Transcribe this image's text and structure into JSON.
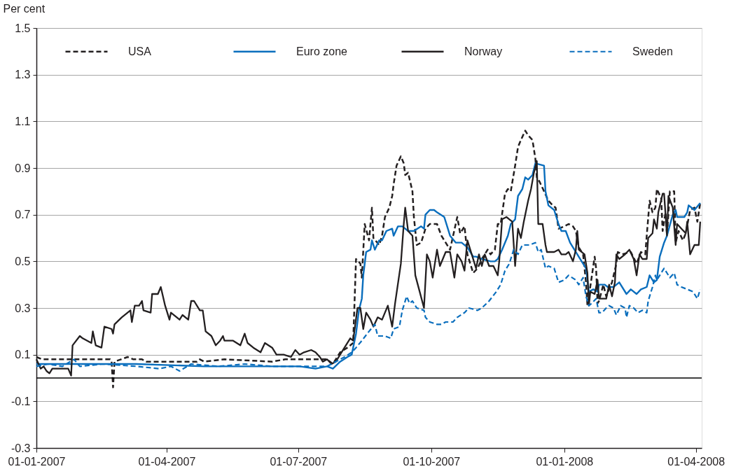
{
  "chart_data": {
    "type": "line",
    "ylabel": "Per cent",
    "xlim": [
      "2007-01-01",
      "2008-04-05"
    ],
    "xticks": [
      {
        "value": "2007-01-01",
        "label": "01-01-2007"
      },
      {
        "value": "2007-04-01",
        "label": "01-04-2007"
      },
      {
        "value": "2007-07-01",
        "label": "01-07-2007"
      },
      {
        "value": "2007-10-01",
        "label": "01-10-2007"
      },
      {
        "value": "2008-01-01",
        "label": "01-01-2008"
      },
      {
        "value": "2008-04-01",
        "label": "01-04-2008"
      }
    ],
    "ylim": [
      -0.3,
      1.5
    ],
    "yticks": [
      -0.3,
      -0.1,
      0.1,
      0.3,
      0.5,
      0.7,
      0.9,
      1.1,
      1.3,
      1.5
    ],
    "grid": "y",
    "legend": "top",
    "marker": "none",
    "ref_lines": [
      {
        "axis": "y",
        "value": 0,
        "color": "#000000"
      }
    ],
    "series": [
      {
        "name": "USA",
        "color": "#231f20",
        "line_style": "dashed",
        "x": [
          "2007-01-01",
          "2007-01-05",
          "2007-02-21",
          "2007-02-22",
          "2007-02-23",
          "2007-02-24",
          "2007-03-05",
          "2007-03-09",
          "2007-03-15",
          "2007-03-18",
          "2007-04-22",
          "2007-04-24",
          "2007-04-27",
          "2007-05-11",
          "2007-06-13",
          "2007-06-22",
          "2007-07-21",
          "2007-07-25",
          "2007-07-30",
          "2007-08-04",
          "2007-08-08",
          "2007-08-10",
          "2007-08-13",
          "2007-08-14",
          "2007-08-16",
          "2007-08-19",
          "2007-08-21",
          "2007-08-22",
          "2007-08-26",
          "2007-08-28",
          "2007-08-30",
          "2007-09-02",
          "2007-09-04",
          "2007-09-05",
          "2007-09-07",
          "2007-09-10",
          "2007-09-12",
          "2007-09-13",
          "2007-09-15",
          "2007-09-18",
          "2007-09-19",
          "2007-09-21",
          "2007-09-24",
          "2007-09-27",
          "2007-09-30",
          "2007-10-05",
          "2007-10-08",
          "2007-10-11",
          "2007-10-14",
          "2007-10-19",
          "2007-10-21",
          "2007-10-24",
          "2007-10-26",
          "2007-10-28",
          "2007-10-30",
          "2007-11-02",
          "2007-11-05",
          "2007-11-09",
          "2007-11-11",
          "2007-11-14",
          "2007-11-16",
          "2007-11-18",
          "2007-11-21",
          "2007-11-23",
          "2007-11-25",
          "2007-11-28",
          "2007-11-30",
          "2007-12-02",
          "2007-12-05",
          "2007-12-07",
          "2007-12-10",
          "2007-12-12",
          "2007-12-13",
          "2007-12-15",
          "2007-12-18",
          "2007-12-21",
          "2007-12-24",
          "2007-12-26",
          "2007-12-28",
          "2008-01-01",
          "2008-01-04",
          "2008-01-07",
          "2008-01-09",
          "2008-01-11",
          "2008-01-14",
          "2008-01-16",
          "2008-01-17",
          "2008-01-18",
          "2008-01-22",
          "2008-01-23",
          "2008-01-24",
          "2008-01-25",
          "2008-01-28",
          "2008-01-30",
          "2008-02-03",
          "2008-02-06",
          "2008-02-07",
          "2008-02-10",
          "2008-02-16",
          "2008-02-20",
          "2008-02-23",
          "2008-02-26",
          "2008-02-27",
          "2008-02-29",
          "2008-03-02",
          "2008-03-04",
          "2008-03-05",
          "2008-03-08",
          "2008-03-09",
          "2008-03-11",
          "2008-03-12",
          "2008-03-14",
          "2008-03-17",
          "2008-03-18",
          "2008-03-20",
          "2008-03-23",
          "2008-03-25",
          "2008-03-28",
          "2008-03-31",
          "2008-04-02",
          "2008-04-04"
        ],
        "values": [
          0.09,
          0.08,
          0.08,
          0.07,
          -0.04,
          0.07,
          0.09,
          0.08,
          0.08,
          0.07,
          0.07,
          0.08,
          0.07,
          0.08,
          0.07,
          0.08,
          0.08,
          0.06,
          0.11,
          0.13,
          0.15,
          0.51,
          0.49,
          0.43,
          0.66,
          0.59,
          0.73,
          0.6,
          0.57,
          0.61,
          0.69,
          0.73,
          0.78,
          0.83,
          0.91,
          0.95,
          0.92,
          0.87,
          0.88,
          0.8,
          0.69,
          0.57,
          0.58,
          0.64,
          0.66,
          0.66,
          0.61,
          0.58,
          0.55,
          0.69,
          0.62,
          0.65,
          0.53,
          0.49,
          0.45,
          0.47,
          0.51,
          0.55,
          0.53,
          0.55,
          0.66,
          0.66,
          0.79,
          0.81,
          0.8,
          0.91,
          0.99,
          1.02,
          1.06,
          1.04,
          1.02,
          0.94,
          0.86,
          0.84,
          0.8,
          0.76,
          0.74,
          0.73,
          0.64,
          0.65,
          0.66,
          0.65,
          0.63,
          0.56,
          0.53,
          0.41,
          0.31,
          0.35,
          0.52,
          0.47,
          0.32,
          0.33,
          0.4,
          0.35,
          0.41,
          0.49,
          0.54,
          0.53,
          0.54,
          0.49,
          0.54,
          0.53,
          0.61,
          0.76,
          0.71,
          0.73,
          0.81,
          0.77,
          0.63,
          0.71,
          0.61,
          0.8,
          0.8,
          0.58,
          0.63,
          0.59,
          0.62,
          0.72,
          0.73,
          0.67,
          0.75
        ]
      },
      {
        "name": "Euro zone",
        "color": "#0a6ebd",
        "line_style": "solid",
        "x": [
          "2007-01-01",
          "2007-02-02",
          "2007-03-11",
          "2007-04-27",
          "2007-06-13",
          "2007-07-02",
          "2007-07-13",
          "2007-07-21",
          "2007-07-25",
          "2007-07-30",
          "2007-08-04",
          "2007-08-07",
          "2007-08-10",
          "2007-08-12",
          "2007-08-14",
          "2007-08-15",
          "2007-08-17",
          "2007-08-20",
          "2007-08-21",
          "2007-08-23",
          "2007-08-26",
          "2007-08-28",
          "2007-08-31",
          "2007-09-04",
          "2007-09-05",
          "2007-09-08",
          "2007-09-11",
          "2007-09-15",
          "2007-09-19",
          "2007-09-24",
          "2007-09-26",
          "2007-09-27",
          "2007-09-30",
          "2007-10-03",
          "2007-10-05",
          "2007-10-10",
          "2007-10-11",
          "2007-10-14",
          "2007-10-18",
          "2007-10-22",
          "2007-10-26",
          "2007-10-30",
          "2007-11-01",
          "2007-11-05",
          "2007-11-11",
          "2007-11-14",
          "2007-11-16",
          "2007-11-19",
          "2007-11-23",
          "2007-11-25",
          "2007-11-28",
          "2007-11-30",
          "2007-12-03",
          "2007-12-05",
          "2007-12-07",
          "2007-12-10",
          "2007-12-12",
          "2007-12-18",
          "2007-12-19",
          "2007-12-21",
          "2007-12-25",
          "2007-12-28",
          "2007-12-30",
          "2008-01-02",
          "2008-01-05",
          "2008-01-10",
          "2008-01-13",
          "2008-01-16",
          "2008-01-18",
          "2008-01-21",
          "2008-01-24",
          "2008-01-25",
          "2008-01-29",
          "2008-01-31",
          "2008-02-04",
          "2008-02-08",
          "2008-02-13",
          "2008-02-16",
          "2008-02-20",
          "2008-02-23",
          "2008-02-27",
          "2008-02-29",
          "2008-03-03",
          "2008-03-05",
          "2008-03-07",
          "2008-03-10",
          "2008-03-12",
          "2008-03-16",
          "2008-03-18",
          "2008-03-19",
          "2008-03-24",
          "2008-03-26",
          "2008-03-27",
          "2008-03-31",
          "2008-04-04"
        ],
        "values": [
          0.06,
          0.06,
          0.06,
          0.05,
          0.05,
          0.05,
          0.04,
          0.05,
          0.04,
          0.07,
          0.09,
          0.1,
          0.19,
          0.29,
          0.34,
          0.44,
          0.54,
          0.55,
          0.59,
          0.55,
          0.59,
          0.59,
          0.63,
          0.64,
          0.61,
          0.65,
          0.65,
          0.63,
          0.63,
          0.65,
          0.64,
          0.7,
          0.72,
          0.72,
          0.71,
          0.69,
          0.67,
          0.61,
          0.58,
          0.58,
          0.56,
          0.52,
          0.52,
          0.51,
          0.5,
          0.5,
          0.51,
          0.55,
          0.61,
          0.66,
          0.68,
          0.78,
          0.81,
          0.86,
          0.85,
          0.87,
          0.92,
          0.91,
          0.8,
          0.74,
          0.72,
          0.66,
          0.63,
          0.63,
          0.58,
          0.53,
          0.5,
          0.47,
          0.37,
          0.38,
          0.37,
          0.4,
          0.4,
          0.39,
          0.39,
          0.41,
          0.36,
          0.38,
          0.36,
          0.38,
          0.39,
          0.44,
          0.41,
          0.42,
          0.52,
          0.58,
          0.61,
          0.7,
          0.72,
          0.69,
          0.69,
          0.71,
          0.74,
          0.72,
          0.75
        ]
      },
      {
        "name": "Norway",
        "color": "#231f20",
        "line_style": "solid",
        "x": [
          "2007-01-01",
          "2007-01-04",
          "2007-01-06",
          "2007-01-08",
          "2007-01-10",
          "2007-01-12",
          "2007-01-19",
          "2007-01-23",
          "2007-01-25",
          "2007-01-26",
          "2007-01-31",
          "2007-02-02",
          "2007-02-08",
          "2007-02-09",
          "2007-02-11",
          "2007-02-15",
          "2007-02-17",
          "2007-02-22",
          "2007-02-23",
          "2007-02-24",
          "2007-03-01",
          "2007-03-07",
          "2007-03-08",
          "2007-03-10",
          "2007-03-13",
          "2007-03-15",
          "2007-03-16",
          "2007-03-21",
          "2007-03-22",
          "2007-03-26",
          "2007-03-28",
          "2007-03-31",
          "2007-04-03",
          "2007-04-04",
          "2007-04-10",
          "2007-04-12",
          "2007-04-16",
          "2007-04-18",
          "2007-04-20",
          "2007-04-24",
          "2007-04-26",
          "2007-04-28",
          "2007-05-02",
          "2007-05-05",
          "2007-05-08",
          "2007-05-10",
          "2007-05-11",
          "2007-05-17",
          "2007-05-22",
          "2007-05-25",
          "2007-05-27",
          "2007-05-31",
          "2007-06-05",
          "2007-06-08",
          "2007-06-13",
          "2007-06-16",
          "2007-06-21",
          "2007-06-26",
          "2007-06-29",
          "2007-07-02",
          "2007-07-05",
          "2007-07-10",
          "2007-07-13",
          "2007-07-16",
          "2007-07-18",
          "2007-07-21",
          "2007-07-24",
          "2007-07-27",
          "2007-07-30",
          "2007-08-02",
          "2007-08-06",
          "2007-08-08",
          "2007-08-11",
          "2007-08-13",
          "2007-08-15",
          "2007-08-17",
          "2007-08-20",
          "2007-08-22",
          "2007-08-25",
          "2007-08-28",
          "2007-09-01",
          "2007-09-04",
          "2007-09-06",
          "2007-09-10",
          "2007-09-12",
          "2007-09-13",
          "2007-09-15",
          "2007-09-18",
          "2007-09-20",
          "2007-09-23",
          "2007-09-26",
          "2007-09-28",
          "2007-09-30",
          "2007-10-02",
          "2007-10-05",
          "2007-10-07",
          "2007-10-11",
          "2007-10-14",
          "2007-10-17",
          "2007-10-19",
          "2007-10-22",
          "2007-10-24",
          "2007-10-26",
          "2007-10-29",
          "2007-11-01",
          "2007-11-03",
          "2007-11-05",
          "2007-11-07",
          "2007-11-10",
          "2007-11-13",
          "2007-11-16",
          "2007-11-17",
          "2007-11-19",
          "2007-11-22",
          "2007-11-24",
          "2007-11-26",
          "2007-11-28",
          "2007-11-30",
          "2007-12-02",
          "2007-12-04",
          "2007-12-07",
          "2007-12-09",
          "2007-12-11",
          "2007-12-13",
          "2007-12-14",
          "2007-12-17",
          "2007-12-19",
          "2007-12-20",
          "2007-12-25",
          "2007-12-28",
          "2007-12-30",
          "2008-01-02",
          "2008-01-04",
          "2008-01-07",
          "2008-01-09",
          "2008-01-10",
          "2008-01-11",
          "2008-01-15",
          "2008-01-17",
          "2008-01-18",
          "2008-01-19",
          "2008-01-22",
          "2008-01-24",
          "2008-01-25",
          "2008-01-30",
          "2008-02-01",
          "2008-02-03",
          "2008-02-05",
          "2008-02-06",
          "2008-02-08",
          "2008-02-12",
          "2008-02-15",
          "2008-02-18",
          "2008-02-20",
          "2008-02-22",
          "2008-02-24",
          "2008-02-27",
          "2008-02-28",
          "2008-03-02",
          "2008-03-03",
          "2008-03-05",
          "2008-03-06",
          "2008-03-09",
          "2008-03-10",
          "2008-03-12",
          "2008-03-13",
          "2008-03-16",
          "2008-03-18",
          "2008-03-19",
          "2008-03-22",
          "2008-03-25",
          "2008-03-26",
          "2008-03-28",
          "2008-03-31",
          "2008-04-03",
          "2008-04-04"
        ],
        "values": [
          0.08,
          0.04,
          0.05,
          0.03,
          0.02,
          0.04,
          0.04,
          0.04,
          0.01,
          0.14,
          0.18,
          0.17,
          0.15,
          0.2,
          0.14,
          0.13,
          0.22,
          0.21,
          0.19,
          0.23,
          0.26,
          0.29,
          0.24,
          0.31,
          0.31,
          0.33,
          0.29,
          0.28,
          0.36,
          0.36,
          0.39,
          0.31,
          0.25,
          0.28,
          0.25,
          0.27,
          0.25,
          0.33,
          0.33,
          0.29,
          0.29,
          0.2,
          0.18,
          0.14,
          0.16,
          0.18,
          0.16,
          0.16,
          0.14,
          0.19,
          0.15,
          0.13,
          0.11,
          0.15,
          0.13,
          0.1,
          0.1,
          0.09,
          0.12,
          0.1,
          0.11,
          0.12,
          0.11,
          0.09,
          0.07,
          0.08,
          0.06,
          0.07,
          0.1,
          0.13,
          0.17,
          0.16,
          0.3,
          0.3,
          0.21,
          0.28,
          0.25,
          0.22,
          0.26,
          0.25,
          0.31,
          0.22,
          0.32,
          0.49,
          0.66,
          0.73,
          0.63,
          0.61,
          0.44,
          0.37,
          0.3,
          0.53,
          0.5,
          0.43,
          0.55,
          0.48,
          0.54,
          0.54,
          0.43,
          0.53,
          0.5,
          0.46,
          0.59,
          0.53,
          0.47,
          0.53,
          0.48,
          0.53,
          0.48,
          0.48,
          0.44,
          0.5,
          0.68,
          0.69,
          0.68,
          0.67,
          0.48,
          0.64,
          0.6,
          0.67,
          0.76,
          0.81,
          0.88,
          0.93,
          0.66,
          0.66,
          0.57,
          0.54,
          0.54,
          0.55,
          0.53,
          0.53,
          0.54,
          0.5,
          0.55,
          0.63,
          0.55,
          0.53,
          0.45,
          0.31,
          0.37,
          0.36,
          0.42,
          0.34,
          0.34,
          0.4,
          0.35,
          0.41,
          0.53,
          0.51,
          0.53,
          0.55,
          0.51,
          0.44,
          0.53,
          0.51,
          0.51,
          0.6,
          0.62,
          0.68,
          0.64,
          0.71,
          0.79,
          0.79,
          0.61,
          0.78,
          0.73,
          0.57,
          0.66,
          0.64,
          0.62,
          0.67,
          0.53,
          0.57,
          0.57,
          0.67
        ]
      },
      {
        "name": "Sweden",
        "color": "#0a6ebd",
        "line_style": "dashed",
        "x": [
          "2007-01-01",
          "2007-01-09",
          "2007-01-19",
          "2007-01-27",
          "2007-01-31",
          "2007-02-16",
          "2007-03-11",
          "2007-03-27",
          "2007-04-04",
          "2007-04-10",
          "2007-04-18",
          "2007-05-07",
          "2007-05-25",
          "2007-06-13",
          "2007-07-02",
          "2007-07-21",
          "2007-07-27",
          "2007-08-02",
          "2007-08-07",
          "2007-08-10",
          "2007-08-14",
          "2007-08-19",
          "2007-08-23",
          "2007-08-25",
          "2007-08-30",
          "2007-09-03",
          "2007-09-05",
          "2007-09-09",
          "2007-09-11",
          "2007-09-14",
          "2007-09-16",
          "2007-09-18",
          "2007-09-21",
          "2007-09-26",
          "2007-09-27",
          "2007-09-30",
          "2007-10-05",
          "2007-10-08",
          "2007-10-11",
          "2007-10-16",
          "2007-10-19",
          "2007-10-24",
          "2007-10-27",
          "2007-11-02",
          "2007-11-05",
          "2007-11-10",
          "2007-11-15",
          "2007-11-18",
          "2007-11-21",
          "2007-11-24",
          "2007-11-27",
          "2007-11-30",
          "2007-12-03",
          "2007-12-08",
          "2007-12-12",
          "2007-12-14",
          "2007-12-16",
          "2007-12-19",
          "2007-12-21",
          "2007-12-25",
          "2007-12-28",
          "2008-01-01",
          "2008-01-04",
          "2008-01-09",
          "2008-01-11",
          "2008-01-14",
          "2008-01-16",
          "2008-01-18",
          "2008-01-20",
          "2008-01-23",
          "2008-01-25",
          "2008-01-27",
          "2008-01-30",
          "2008-02-01",
          "2008-02-04",
          "2008-02-06",
          "2008-02-09",
          "2008-02-12",
          "2008-02-13",
          "2008-02-15",
          "2008-02-18",
          "2008-02-21",
          "2008-02-24",
          "2008-02-27",
          "2008-02-28",
          "2008-03-02",
          "2008-03-04",
          "2008-03-05",
          "2008-03-10",
          "2008-03-12",
          "2008-03-14",
          "2008-03-17",
          "2008-03-19",
          "2008-03-22",
          "2008-03-26",
          "2008-03-30",
          "2008-04-02",
          "2008-04-04"
        ],
        "values": [
          0.05,
          0.06,
          0.05,
          0.08,
          0.05,
          0.06,
          0.05,
          0.04,
          0.05,
          0.03,
          0.06,
          0.05,
          0.06,
          0.05,
          0.05,
          0.05,
          0.07,
          0.09,
          0.11,
          0.13,
          0.16,
          0.2,
          0.23,
          0.18,
          0.18,
          0.17,
          0.21,
          0.22,
          0.29,
          0.35,
          0.32,
          0.33,
          0.3,
          0.29,
          0.26,
          0.24,
          0.23,
          0.23,
          0.24,
          0.24,
          0.26,
          0.28,
          0.3,
          0.29,
          0.3,
          0.33,
          0.37,
          0.4,
          0.46,
          0.49,
          0.55,
          0.53,
          0.57,
          0.57,
          0.58,
          0.54,
          0.55,
          0.47,
          0.48,
          0.47,
          0.41,
          0.42,
          0.44,
          0.42,
          0.4,
          0.43,
          0.35,
          0.31,
          0.32,
          0.34,
          0.28,
          0.28,
          0.3,
          0.31,
          0.3,
          0.27,
          0.31,
          0.3,
          0.26,
          0.31,
          0.3,
          0.28,
          0.29,
          0.28,
          0.33,
          0.39,
          0.44,
          0.42,
          0.47,
          0.45,
          0.43,
          0.45,
          0.4,
          0.39,
          0.38,
          0.37,
          0.34,
          0.38
        ]
      }
    ]
  }
}
